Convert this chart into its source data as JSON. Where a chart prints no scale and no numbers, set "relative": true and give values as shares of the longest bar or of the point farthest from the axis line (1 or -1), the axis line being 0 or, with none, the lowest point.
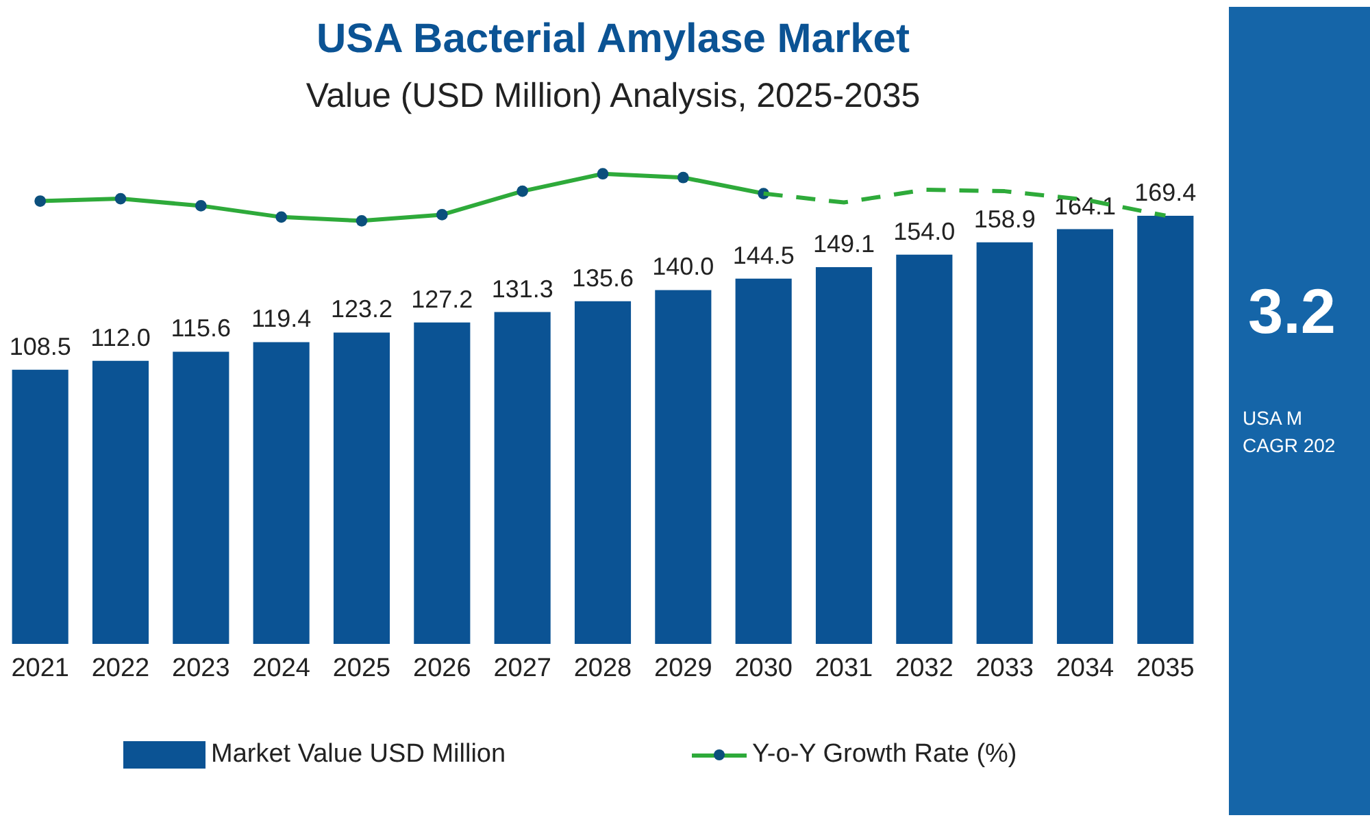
{
  "chart_data": [
    {
      "type": "bar",
      "title": "USA Bacterial Amylase Market",
      "subtitle": "Value (USD Million) Analysis, 2025-2035",
      "categories": [
        "2021",
        "2022",
        "2023",
        "2024",
        "2025",
        "2026",
        "2027",
        "2028",
        "2029",
        "2030",
        "2031",
        "2032",
        "2033",
        "2034",
        "2035"
      ],
      "series": [
        {
          "name": "Market Value USD Million",
          "color": "#0b5394",
          "values": [
            108.5,
            112.0,
            115.6,
            119.4,
            123.2,
            127.2,
            131.3,
            135.6,
            140.0,
            144.5,
            149.1,
            154.0,
            158.9,
            164.1,
            169.4
          ],
          "value_labels": [
            "108.5",
            "112.0",
            "115.6",
            "119.4",
            "123.2",
            "127.2",
            "131.3",
            "135.6",
            "140.0",
            "144.5",
            "149.1",
            "154.0",
            "158.9",
            "164.1",
            "169.4"
          ]
        }
      ],
      "legend": "bottom",
      "annotations": [
        "3.2",
        "USA M",
        "CAGR 202"
      ]
    },
    {
      "type": "line",
      "relative": true,
      "tick_labels": false,
      "categories": [
        "2021",
        "2022",
        "2023",
        "2024",
        "2025",
        "2026",
        "2027",
        "2028",
        "2029",
        "2030",
        "2031",
        "2032",
        "2033",
        "2034",
        "2035"
      ],
      "series": [
        {
          "name": "Y-o-Y Growth Rate (%)",
          "color": "#2eaa3a",
          "marker": "circle",
          "line_style": "solid",
          "values": [
            0.42,
            0.47,
            0.32,
            0.08,
            0,
            0.13,
            0.63,
            1,
            0.92,
            0.58,
            null,
            null,
            null,
            null,
            null
          ]
        },
        {
          "color": "#2eaa3a",
          "marker": "none",
          "line_style": "dashed",
          "values": [
            null,
            null,
            null,
            null,
            null,
            null,
            null,
            null,
            null,
            0.58,
            0.39,
            0.66,
            0.63,
            0.45,
            0.11
          ]
        }
      ],
      "legend": "bottom"
    }
  ]
}
